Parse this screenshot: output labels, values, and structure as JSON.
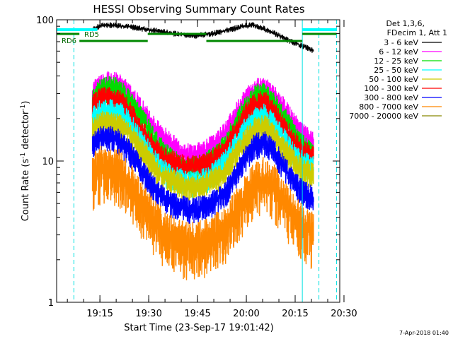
{
  "chart_data": {
    "type": "line",
    "title": "HESSI Observing Summary Count Rates",
    "xlabel": "Start Time (23-Sep-17 19:01:42)",
    "ylabel_main": "Count Rate (s",
    "ylabel_sup1": "-1",
    "ylabel_mid": " detector",
    "ylabel_sup2": "-1",
    "ylabel_end": ")",
    "yscale": "log",
    "ylim": [
      1,
      100
    ],
    "xlim_minutes": [
      0,
      87
    ],
    "x_ticks": [
      {
        "m": 13.3,
        "label": "19:15"
      },
      {
        "m": 28.3,
        "label": "19:30"
      },
      {
        "m": 43.3,
        "label": "19:45"
      },
      {
        "m": 58.3,
        "label": "20:00"
      },
      {
        "m": 73.3,
        "label": "20:15"
      },
      {
        "m": 88.3,
        "label": "20:30"
      }
    ],
    "y_ticks": [
      {
        "v": 1,
        "label": "1"
      },
      {
        "v": 10,
        "label": "10"
      },
      {
        "v": 100,
        "label": "100"
      }
    ],
    "legend_header": [
      "Det 1,3,6,",
      "FDecim 1, Att 1"
    ],
    "legend": [
      {
        "label": "3 - 6 keV",
        "color": "#000000"
      },
      {
        "label": "6 - 12 keV",
        "color": "#ff00ff"
      },
      {
        "label": "12 - 25 keV",
        "color": "#00dd00"
      },
      {
        "label": "25 - 50 keV",
        "color": "#00ffff"
      },
      {
        "label": "50 - 100 keV",
        "color": "#cccc00"
      },
      {
        "label": "100 - 300 keV",
        "color": "#ff0000"
      },
      {
        "label": "300 - 800 keV",
        "color": "#0000ff"
      },
      {
        "label": "800 - 7000 keV",
        "color": "#ff8800"
      },
      {
        "label": "7000 - 20000 keV",
        "color": "#888800"
      }
    ],
    "series": [
      {
        "name": "3 - 6 keV",
        "color": "#000000",
        "x": [
          11,
          13,
          15,
          18,
          21,
          24,
          27,
          30,
          33,
          36,
          39,
          42,
          45,
          48,
          51,
          54,
          57,
          60,
          63,
          66,
          69,
          72,
          75,
          78,
          79
        ],
        "y": [
          85,
          90,
          92,
          91,
          90,
          88,
          86,
          84,
          82,
          80,
          78,
          77,
          78,
          80,
          83,
          86,
          90,
          92,
          88,
          82,
          76,
          70,
          66,
          62,
          60
        ]
      },
      {
        "name": "6 - 12 keV",
        "color": "#ff00ff",
        "x": [
          11,
          13,
          16,
          19,
          22,
          25,
          28,
          31,
          34,
          37,
          40,
          43,
          46,
          49,
          52,
          55,
          58,
          61,
          64,
          67,
          70,
          73,
          76,
          79
        ],
        "y": [
          30,
          34,
          36,
          35,
          30,
          25,
          20,
          16,
          14,
          12,
          11,
          11,
          12,
          13,
          16,
          21,
          27,
          32,
          33,
          28,
          23,
          18,
          15,
          13
        ]
      },
      {
        "name": "12 - 25 keV",
        "color": "#00dd00",
        "x": [
          11,
          13,
          16,
          19,
          22,
          25,
          28,
          31,
          34,
          37,
          40,
          43,
          46,
          49,
          52,
          55,
          58,
          61,
          64,
          67,
          70,
          73,
          76,
          79
        ],
        "y": [
          27,
          31,
          33,
          32,
          27,
          22,
          17,
          13,
          11,
          9.5,
          9,
          9,
          9.5,
          11,
          13,
          18,
          24,
          29,
          30,
          25,
          20,
          15.5,
          12.5,
          11
        ]
      },
      {
        "name": "100 - 300 keV",
        "color": "#ff0000",
        "x": [
          11,
          13,
          16,
          19,
          22,
          25,
          28,
          31,
          34,
          37,
          40,
          43,
          46,
          49,
          52,
          55,
          58,
          61,
          64,
          67,
          70,
          73,
          76,
          79
        ],
        "y": [
          24,
          27,
          28,
          27,
          23,
          18,
          14,
          11.5,
          10,
          9.5,
          9,
          9,
          9.5,
          10.5,
          12,
          16,
          21,
          25,
          26,
          22,
          17,
          13.5,
          11.5,
          10.5
        ]
      },
      {
        "name": "25 - 50 keV",
        "color": "#00ffff",
        "x": [
          11,
          13,
          16,
          19,
          22,
          25,
          28,
          31,
          34,
          37,
          40,
          43,
          46,
          49,
          52,
          55,
          58,
          61,
          64,
          67,
          70,
          73,
          76,
          79
        ],
        "y": [
          20,
          22,
          23,
          22,
          19,
          15,
          12,
          9.5,
          8,
          7.5,
          7,
          7,
          7.5,
          8.5,
          10,
          13,
          17,
          20,
          21,
          18,
          14,
          11,
          9.5,
          9
        ]
      },
      {
        "name": "50 - 100 keV",
        "color": "#cccc00",
        "x": [
          11,
          13,
          16,
          19,
          22,
          25,
          28,
          31,
          34,
          37,
          40,
          43,
          46,
          49,
          52,
          55,
          58,
          61,
          64,
          67,
          70,
          73,
          76,
          79
        ],
        "y": [
          17,
          18.5,
          19,
          18,
          16,
          13,
          10.5,
          8.5,
          7.5,
          7,
          6.5,
          6.5,
          7,
          7.5,
          8.5,
          11,
          14,
          17,
          17.5,
          15,
          12,
          10,
          8.5,
          8
        ]
      },
      {
        "name": "300 - 800 keV",
        "color": "#0000ff",
        "x": [
          11,
          13,
          16,
          19,
          22,
          25,
          28,
          31,
          34,
          37,
          40,
          43,
          46,
          49,
          52,
          55,
          58,
          61,
          64,
          67,
          70,
          73,
          76,
          79
        ],
        "y": [
          13,
          14.5,
          15,
          14,
          12,
          9.5,
          7.5,
          6,
          5.2,
          4.8,
          4.6,
          4.6,
          4.8,
          5.3,
          6,
          8,
          10.5,
          13,
          13.5,
          11.5,
          9,
          7,
          6,
          5.5
        ]
      },
      {
        "name": "800 - 7000 keV",
        "color": "#ff8800",
        "x": [
          11,
          13,
          16,
          19,
          22,
          25,
          28,
          31,
          34,
          37,
          40,
          43,
          46,
          49,
          52,
          55,
          58,
          61,
          64,
          67,
          70,
          73,
          76,
          79
        ],
        "y": [
          8,
          8.8,
          9,
          8.5,
          7,
          5.5,
          4.3,
          3.5,
          3,
          2.7,
          2.6,
          2.6,
          2.7,
          3,
          3.4,
          4.3,
          5.5,
          7,
          7.5,
          6.5,
          5,
          4,
          3.3,
          3
        ]
      }
    ],
    "annotations": {
      "rd5": "RD5",
      "rd6": "RD6",
      "footer_date": "7-Apr-2018 01:40"
    },
    "cyan_vlines": [
      0,
      75.5
    ],
    "dashed_vlines": [
      5.3,
      80.6,
      86
    ]
  }
}
